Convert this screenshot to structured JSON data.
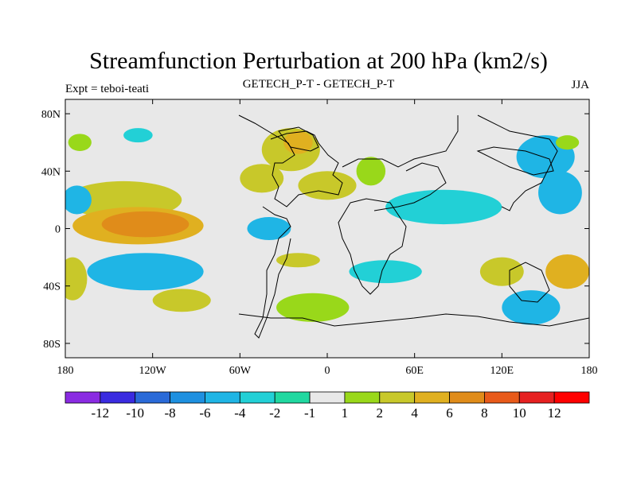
{
  "chart_data": {
    "type": "contour-map",
    "title": "Streamfunction Perturbation at 200 hPa (km2/s)",
    "left_label": "Expt = teboi-teati",
    "center_label": "GETECH_P-T - GETECH_P-T",
    "right_label": "JJA",
    "x_axis": {
      "range": [
        -180,
        180
      ],
      "ticks": [
        -180,
        -120,
        -60,
        0,
        60,
        120,
        180
      ],
      "tick_labels": [
        "180",
        "120W",
        "60W",
        "0",
        "60E",
        "120E",
        "180"
      ]
    },
    "y_axis": {
      "range": [
        -90,
        90
      ],
      "ticks": [
        80,
        40,
        0,
        -40,
        -80
      ],
      "tick_labels": [
        "80N",
        "40N",
        "0",
        "40S",
        "80S"
      ]
    },
    "contour_levels": [
      -12,
      -10,
      -8,
      -6,
      -4,
      -2,
      -1,
      1,
      2,
      4,
      6,
      8,
      10,
      12
    ],
    "colorbar_labels": [
      "-12",
      "-10",
      "-8",
      "-6",
      "-4",
      "-2",
      "-1",
      "1",
      "2",
      "4",
      "6",
      "8",
      "10",
      "12"
    ],
    "colors": [
      "#8a2be2",
      "#3a2be0",
      "#2a6ad8",
      "#1e90e0",
      "#1fb5e5",
      "#22d0d6",
      "#20d8a0",
      "#e8e8e8",
      "#99d81a",
      "#c8c82a",
      "#e0b020",
      "#e08c1a",
      "#e85a1a",
      "#e62020",
      "#ff0000"
    ],
    "regions": [
      {
        "lon": -140,
        "lat": 20,
        "rlon": 40,
        "rlat": 13,
        "level": 4
      },
      {
        "lon": -130,
        "lat": 2,
        "rlon": 45,
        "rlat": 13,
        "level": 6
      },
      {
        "lon": -125,
        "lat": 3,
        "rlon": 30,
        "rlat": 9,
        "level": 8
      },
      {
        "lon": -125,
        "lat": -30,
        "rlon": 40,
        "rlat": 13,
        "level": -4
      },
      {
        "lon": -100,
        "lat": -50,
        "rlon": 20,
        "rlat": 8,
        "level": 4
      },
      {
        "lon": -175,
        "lat": -35,
        "rlon": 10,
        "rlat": 15,
        "level": 4
      },
      {
        "lon": -172,
        "lat": 20,
        "rlon": 10,
        "rlat": 10,
        "level": -4
      },
      {
        "lon": -25,
        "lat": 55,
        "rlon": 20,
        "rlat": 15,
        "level": 4
      },
      {
        "lon": -20,
        "lat": 60,
        "rlon": 10,
        "rlat": 8,
        "level": 6
      },
      {
        "lon": -45,
        "lat": 35,
        "rlon": 15,
        "rlat": 10,
        "level": 4
      },
      {
        "lon": 0,
        "lat": 30,
        "rlon": 20,
        "rlat": 10,
        "level": 4
      },
      {
        "lon": -40,
        "lat": 0,
        "rlon": 15,
        "rlat": 8,
        "level": -4
      },
      {
        "lon": -20,
        "lat": -22,
        "rlon": 15,
        "rlat": 5,
        "level": 4
      },
      {
        "lon": -130,
        "lat": 65,
        "rlon": 10,
        "rlat": 5,
        "level": -2
      },
      {
        "lon": 80,
        "lat": 15,
        "rlon": 40,
        "rlat": 12,
        "level": -2
      },
      {
        "lon": 150,
        "lat": 50,
        "rlon": 20,
        "rlat": 15,
        "level": -4
      },
      {
        "lon": 160,
        "lat": 25,
        "rlon": 15,
        "rlat": 15,
        "level": -4
      },
      {
        "lon": 165,
        "lat": -30,
        "rlon": 15,
        "rlat": 12,
        "level": 6
      },
      {
        "lon": 120,
        "lat": -30,
        "rlon": 15,
        "rlat": 10,
        "level": 4
      },
      {
        "lon": 140,
        "lat": -55,
        "rlon": 20,
        "rlat": 12,
        "level": -4
      },
      {
        "lon": -170,
        "lat": 60,
        "rlon": 8,
        "rlat": 6,
        "level": 2
      },
      {
        "lon": -10,
        "lat": -55,
        "rlon": 25,
        "rlat": 10,
        "level": 2
      },
      {
        "lon": 40,
        "lat": -30,
        "rlon": 25,
        "rlat": 8,
        "level": -2
      },
      {
        "lon": 30,
        "lat": 40,
        "rlon": 10,
        "rlat": 10,
        "level": 2
      },
      {
        "lon": 165,
        "lat": 60,
        "rlon": 8,
        "rlat": 5,
        "level": 2
      }
    ]
  }
}
